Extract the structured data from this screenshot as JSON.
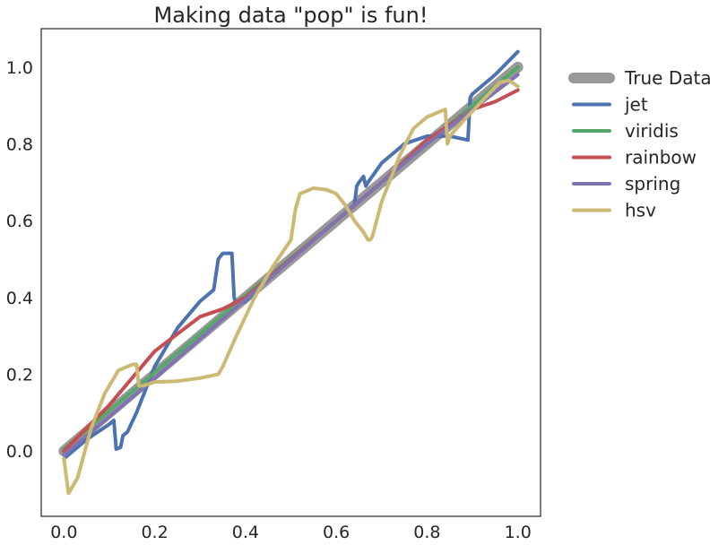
{
  "chart_data": {
    "type": "line",
    "title": "Making data \"pop\" is fun!",
    "xlabel": "",
    "ylabel": "",
    "xlim": [
      -0.05,
      1.05
    ],
    "ylim": [
      -0.17,
      1.1
    ],
    "xticks": [
      0.0,
      0.2,
      0.4,
      0.6,
      0.8,
      1.0
    ],
    "xtick_labels": [
      "0.0",
      "0.2",
      "0.4",
      "0.6",
      "0.8",
      "1.0"
    ],
    "yticks": [
      0.0,
      0.2,
      0.4,
      0.6,
      0.8,
      1.0
    ],
    "ytick_labels": [
      "0.0",
      "0.2",
      "0.4",
      "0.6",
      "0.8",
      "1.0"
    ],
    "grid": false,
    "legend_position": "outside-right",
    "series": [
      {
        "name": "True Data",
        "color": "#999999",
        "width": 12,
        "x": [
          0.0,
          1.0
        ],
        "y": [
          0.0,
          1.0
        ]
      },
      {
        "name": "jet",
        "color": "#4c72b0",
        "width": 4,
        "x": [
          0.0,
          0.05,
          0.1,
          0.11,
          0.115,
          0.125,
          0.13,
          0.14,
          0.16,
          0.2,
          0.25,
          0.3,
          0.33,
          0.34,
          0.35,
          0.37,
          0.375,
          0.38,
          0.4,
          0.45,
          0.5,
          0.55,
          0.6,
          0.62,
          0.64,
          0.645,
          0.65,
          0.66,
          0.665,
          0.67,
          0.7,
          0.75,
          0.8,
          0.85,
          0.89,
          0.895,
          0.9,
          0.95,
          1.0
        ],
        "y": [
          -0.02,
          0.03,
          0.07,
          0.08,
          0.005,
          0.01,
          0.04,
          0.05,
          0.1,
          0.22,
          0.32,
          0.39,
          0.42,
          0.5,
          0.515,
          0.515,
          0.4,
          0.38,
          0.39,
          0.45,
          0.5,
          0.55,
          0.6,
          0.62,
          0.64,
          0.69,
          0.7,
          0.715,
          0.69,
          0.7,
          0.75,
          0.8,
          0.82,
          0.82,
          0.81,
          0.92,
          0.93,
          0.98,
          1.04
        ]
      },
      {
        "name": "viridis",
        "color": "#55a868",
        "width": 4,
        "x": [
          0.0,
          0.2,
          0.4,
          0.6,
          0.8,
          1.0
        ],
        "y": [
          0.005,
          0.205,
          0.405,
          0.6,
          0.8,
          1.0
        ]
      },
      {
        "name": "rainbow",
        "color": "#c44e52",
        "width": 4,
        "x": [
          0.0,
          0.1,
          0.2,
          0.3,
          0.35,
          0.4,
          0.5,
          0.6,
          0.7,
          0.8,
          0.9,
          0.95,
          1.0
        ],
        "y": [
          0.0,
          0.12,
          0.26,
          0.35,
          0.37,
          0.4,
          0.5,
          0.6,
          0.7,
          0.81,
          0.89,
          0.91,
          0.94
        ]
      },
      {
        "name": "spring",
        "color": "#8172b2",
        "width": 4,
        "x": [
          0.0,
          0.2,
          0.4,
          0.6,
          0.8,
          1.0
        ],
        "y": [
          -0.01,
          0.19,
          0.395,
          0.6,
          0.8,
          0.98
        ]
      },
      {
        "name": "hsv",
        "color": "#ccb974",
        "width": 4,
        "x": [
          0.0,
          0.01,
          0.03,
          0.06,
          0.09,
          0.12,
          0.15,
          0.16,
          0.165,
          0.175,
          0.2,
          0.25,
          0.3,
          0.34,
          0.35,
          0.38,
          0.42,
          0.46,
          0.5,
          0.51,
          0.52,
          0.55,
          0.58,
          0.6,
          0.62,
          0.64,
          0.66,
          0.67,
          0.675,
          0.68,
          0.7,
          0.74,
          0.77,
          0.8,
          0.84,
          0.845,
          0.85,
          0.88,
          0.92,
          0.96,
          0.98,
          1.0
        ],
        "y": [
          -0.02,
          -0.11,
          -0.07,
          0.06,
          0.15,
          0.21,
          0.225,
          0.226,
          0.17,
          0.17,
          0.18,
          0.182,
          0.19,
          0.2,
          0.22,
          0.3,
          0.4,
          0.48,
          0.55,
          0.63,
          0.67,
          0.685,
          0.68,
          0.67,
          0.64,
          0.6,
          0.57,
          0.55,
          0.55,
          0.56,
          0.65,
          0.77,
          0.84,
          0.87,
          0.89,
          0.8,
          0.82,
          0.86,
          0.91,
          0.96,
          0.965,
          0.95
        ]
      }
    ]
  }
}
